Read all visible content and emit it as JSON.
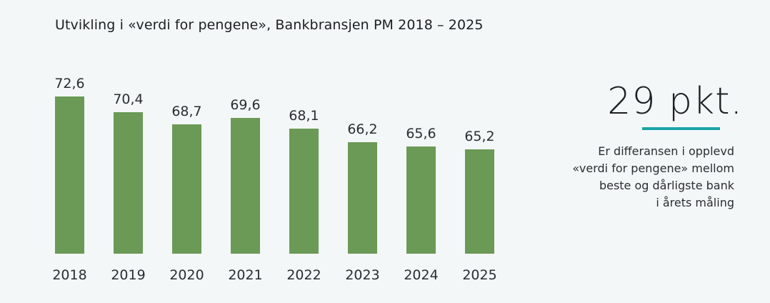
{
  "title": "Utvikling i «verdi for pengene», Bankbransjen PM 2018 – 2025",
  "chart_data": {
    "type": "bar",
    "title": "Utvikling i «verdi for pengene», Bankbransjen PM 2018 – 2025",
    "categories": [
      "2018",
      "2019",
      "2020",
      "2021",
      "2022",
      "2023",
      "2024",
      "2025"
    ],
    "values": [
      72.6,
      70.4,
      68.7,
      69.6,
      68.1,
      66.2,
      65.6,
      65.2
    ],
    "value_labels": [
      "72,6",
      "70,4",
      "68,7",
      "69,6",
      "68,1",
      "66,2",
      "65,6",
      "65,2"
    ],
    "bar_color": "#6a9a55",
    "grid": false,
    "legend": "none"
  },
  "callout": {
    "value": "29 pkt.",
    "underline_color": "#1aa3a8",
    "lines": [
      "Er differansen i opplevd",
      "«verdi for pengene» mellom",
      "beste og dårligste bank",
      "i årets måling"
    ]
  }
}
